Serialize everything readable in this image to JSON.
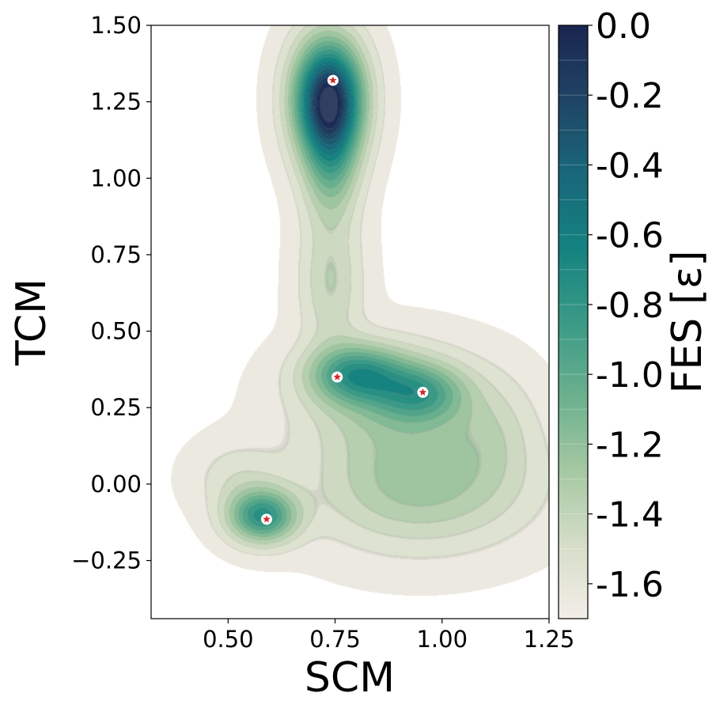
{
  "chart_data": {
    "type": "contour",
    "title": "",
    "xlabel": "SCM",
    "ylabel": "TCM",
    "xlim": [
      0.32,
      1.25
    ],
    "ylim": [
      -0.44,
      1.5
    ],
    "x_ticks": [
      "0.50",
      "0.75",
      "1.00",
      "1.25"
    ],
    "x_tick_values": [
      0.5,
      0.75,
      1.0,
      1.25
    ],
    "y_ticks": [
      "−0.25",
      "0.00",
      "0.25",
      "0.50",
      "0.75",
      "1.00",
      "1.25",
      "1.50"
    ],
    "y_tick_values": [
      -0.25,
      0.0,
      0.25,
      0.5,
      0.75,
      1.0,
      1.25,
      1.5
    ],
    "grid": false,
    "colorbar": {
      "label": "FES [ε]",
      "range": [
        -1.7,
        0.0
      ],
      "ticks": [
        "0.0",
        "-0.2",
        "-0.4",
        "-0.6",
        "-0.8",
        "-1.0",
        "-1.2",
        "-1.4",
        "-1.6"
      ],
      "tick_values": [
        0.0,
        -0.2,
        -0.4,
        -0.6,
        -0.8,
        -1.0,
        -1.2,
        -1.4,
        -1.6
      ],
      "levels": 17,
      "colormap": [
        "#f3eee8",
        "#d5ddc8",
        "#a5c8a2",
        "#6bb08e",
        "#3a9a86",
        "#148280",
        "#19677a",
        "#1f4464",
        "#1a2550"
      ]
    },
    "minima_marker_color": "#d62728",
    "minima": [
      {
        "x": 0.745,
        "y": 1.32,
        "fes": -1.7
      },
      {
        "x": 0.755,
        "y": 0.35,
        "fes": -1.15
      },
      {
        "x": 0.955,
        "y": 0.3,
        "fes": -1.1
      },
      {
        "x": 0.59,
        "y": -0.115,
        "fes": -0.95
      }
    ],
    "basins": [
      {
        "x": 0.735,
        "y": 1.26,
        "sx": 0.055,
        "sy": 0.13,
        "depth": 1.7
      },
      {
        "x": 0.74,
        "y": 1.04,
        "sx": 0.045,
        "sy": 0.13,
        "depth": 0.5
      },
      {
        "x": 0.74,
        "y": 0.66,
        "sx": 0.05,
        "sy": 0.15,
        "depth": 0.3
      },
      {
        "x": 0.8,
        "y": 0.36,
        "sx": 0.075,
        "sy": 0.065,
        "depth": 0.75
      },
      {
        "x": 0.95,
        "y": 0.3,
        "sx": 0.07,
        "sy": 0.065,
        "depth": 0.55
      },
      {
        "x": 0.88,
        "y": 0.28,
        "sx": 0.14,
        "sy": 0.12,
        "depth": 0.35
      },
      {
        "x": 0.58,
        "y": -0.105,
        "sx": 0.055,
        "sy": 0.06,
        "depth": 0.9
      },
      {
        "x": 0.95,
        "y": 0.0,
        "sx": 0.17,
        "sy": 0.14,
        "depth": 0.45
      },
      {
        "x": 0.52,
        "y": 0.02,
        "sx": 0.07,
        "sy": 0.08,
        "depth": 0.15
      },
      {
        "x": 1.12,
        "y": 0.18,
        "sx": 0.07,
        "sy": 0.12,
        "depth": 0.15
      }
    ]
  }
}
